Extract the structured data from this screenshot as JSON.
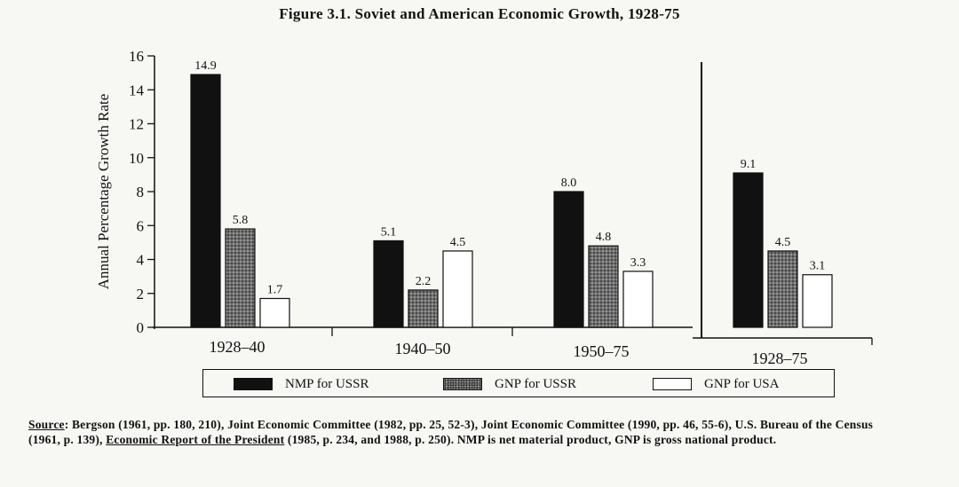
{
  "chart_data": {
    "type": "bar",
    "title": "Figure 3.1. Soviet and American Economic Growth, 1928-75",
    "ylabel": "Annual Percentage Growth Rate",
    "xlabel": "",
    "ylim": [
      0,
      16
    ],
    "yticks": [
      0,
      2,
      4,
      6,
      8,
      10,
      12,
      14,
      16
    ],
    "categories": [
      "1928–40",
      "1940–50",
      "1950–75",
      "1928–75"
    ],
    "series": [
      {
        "name": "NMP for USSR",
        "style": "solid",
        "color": "#111111",
        "values": [
          14.9,
          5.1,
          8.0,
          9.1
        ],
        "labels": [
          "14.9",
          "5.1",
          "8.0",
          "9.1"
        ]
      },
      {
        "name": "GNP for USSR",
        "style": "dotted",
        "color": "#6e6e6e",
        "values": [
          5.8,
          2.2,
          4.8,
          4.5
        ],
        "labels": [
          "5.8",
          "2.2",
          "4.8",
          "4.5"
        ]
      },
      {
        "name": "GNP for USA",
        "style": "hollow",
        "color": "#ffffff",
        "values": [
          1.7,
          4.5,
          3.3,
          3.1
        ],
        "labels": [
          "1.7",
          "4.5",
          "3.3",
          "3.1"
        ]
      }
    ],
    "legend_position": "bottom"
  },
  "legend": {
    "nmp_ussr": "NMP for USSR",
    "gnp_ussr": "GNP for USSR",
    "gnp_usa": "GNP for USA"
  },
  "source": {
    "label": "Source",
    "text_1": ": Bergson (1961, pp. 180, 210), Joint Economic Committee (1982, pp. 25, 52-3), Joint Economic Committee (1990, pp. 46, 55-6), U.S. Bureau of the Census (1961, p. 139), ",
    "report": "Economic Report of the President",
    "text_2": " (1985, p. 234, and 1988, p. 250). NMP is net material product, GNP is gross national product."
  }
}
